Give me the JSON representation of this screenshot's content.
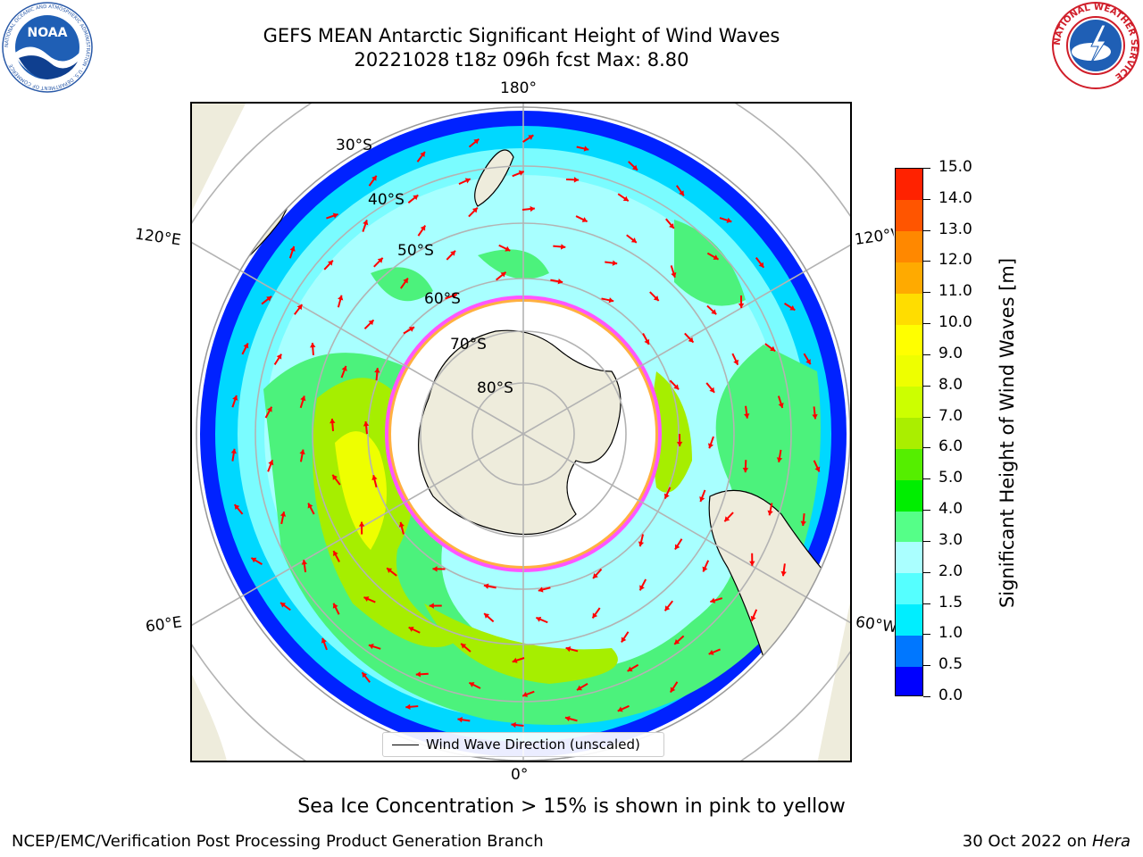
{
  "title": {
    "line1": "GEFS MEAN Antarctic Significant Height of Wind Waves",
    "line2": "20221028 t18z 096h fcst   Max: 8.80"
  },
  "logos": {
    "noara_text": "NOAA",
    "noaa_ring": "NATIONAL OCEANIC AND ATMOSPHERIC ADMINISTRATION · U.S. DEPARTMENT OF COMMERCE",
    "nws_ring": "NATIONAL WEATHER SERVICE"
  },
  "map": {
    "projection": "south-polar-stereographic",
    "lon_labels": {
      "top": "180°",
      "bottom": "0°",
      "upper_left": "120°E",
      "upper_right": "120°W",
      "lower_left": "60°E",
      "lower_right": "60°W"
    },
    "lat_labels": [
      "30°S",
      "40°S",
      "50°S",
      "60°S",
      "70°S",
      "80°S"
    ],
    "legend": "Wind Wave Direction (unscaled)",
    "colors": {
      "land": "#eeecdc",
      "grid": "#b3b3b3",
      "arrow": "#ff0000",
      "ice": "#ff55ff",
      "ice_edge": "#ffb040"
    }
  },
  "colorbar": {
    "label": "Significant Height of Wind Waves [m]",
    "ticks": [
      "0.0",
      "0.5",
      "1.0",
      "1.5",
      "2.0",
      "3.0",
      "4.0",
      "5.0",
      "6.0",
      "7.0",
      "8.0",
      "9.0",
      "10.0",
      "11.0",
      "12.0",
      "13.0",
      "14.0",
      "15.0"
    ],
    "colors": [
      "#0000ff",
      "#0077ff",
      "#00eeff",
      "#55ffff",
      "#aaffff",
      "#55ff88",
      "#00ee00",
      "#55ee00",
      "#aaee00",
      "#ccff00",
      "#eeff00",
      "#ffff00",
      "#ffdd00",
      "#ffaa00",
      "#ff8800",
      "#ff5500",
      "#ff2200"
    ]
  },
  "ice_note": "Sea Ice Concentration > 15% is shown in pink to yellow",
  "footer": {
    "left": "NCEP/EMC/Verification Post Processing Product Generation Branch",
    "right_prefix": "30 Oct 2022 on ",
    "right_host": "Hera"
  }
}
